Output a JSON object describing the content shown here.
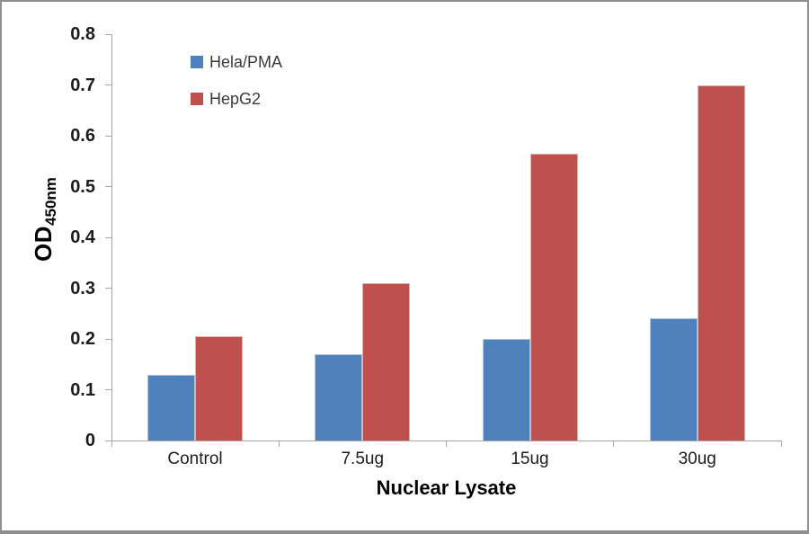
{
  "chart_data": {
    "type": "bar",
    "title": "",
    "xlabel": "Nuclear Lysate",
    "ylabel_main": "OD",
    "ylabel_sub": "450nm",
    "categories": [
      "Control",
      "7.5ug",
      "15ug",
      "30ug"
    ],
    "series": [
      {
        "name": "Hela/PMA",
        "color": "#4F81BD",
        "values": [
          0.13,
          0.17,
          0.2,
          0.24
        ]
      },
      {
        "name": "HepG2",
        "color": "#C0504D",
        "values": [
          0.205,
          0.31,
          0.565,
          0.7
        ]
      }
    ],
    "ylim": [
      0,
      0.8
    ],
    "y_ticks": [
      "0",
      "0.1",
      "0.2",
      "0.3",
      "0.4",
      "0.5",
      "0.6",
      "0.7",
      "0.8"
    ],
    "grid": "off",
    "legend_position": "top-left-inside",
    "axis_color": "#A6A6A6",
    "background": "#FFFFFF"
  }
}
